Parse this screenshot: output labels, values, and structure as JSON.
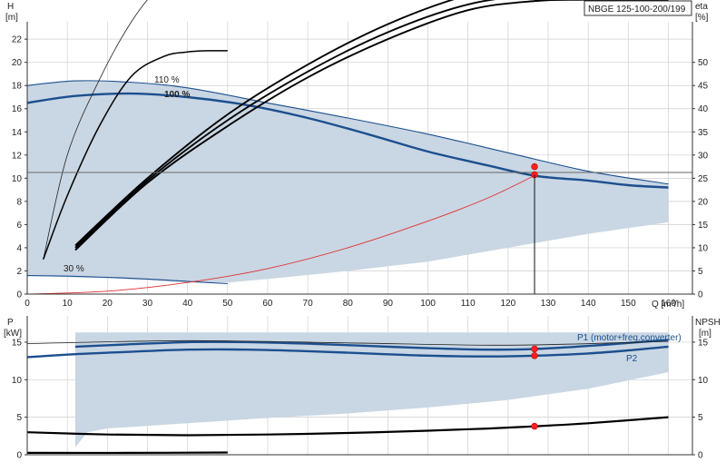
{
  "chart_data": [
    {
      "type": "line",
      "title": "NBGE 125-100-200/199",
      "xlabel": "Q [m³/h]",
      "ylabel": "H",
      "ylabel_unit": "[m]",
      "y2label": "eta",
      "y2label_unit": "[%]",
      "xlim": [
        0,
        166
      ],
      "ylim": [
        0,
        23.5
      ],
      "y2lim": [
        0,
        58.75
      ],
      "x_ticks": [
        0,
        10,
        20,
        30,
        40,
        50,
        60,
        70,
        80,
        90,
        100,
        110,
        120,
        130,
        140,
        150,
        160
      ],
      "y_ticks": [
        0,
        2,
        4,
        6,
        8,
        10,
        12,
        14,
        16,
        18,
        20,
        22
      ],
      "y2_ticks": [
        0,
        5,
        10,
        15,
        20,
        25,
        30,
        35,
        40,
        45,
        50
      ],
      "grid": true,
      "colors": {
        "envelope": "#c9d6e3",
        "curve": "#1b4f8f",
        "eff": "#000000",
        "system": "#e03030",
        "point": "#ff2020",
        "gridline": "#cfcfcf"
      },
      "annotations": [
        {
          "text": "110 %",
          "x": 37,
          "y": 18.6
        },
        {
          "text": "100 %",
          "x": 37,
          "y": 17.3
        },
        {
          "text": "30 %",
          "x": 10.5,
          "y": 2.2
        }
      ],
      "envelope": [
        [
          0,
          18
        ],
        [
          12,
          18.4
        ],
        [
          25,
          18.3
        ],
        [
          40,
          17.8
        ],
        [
          60,
          16.5
        ],
        [
          80,
          15.2
        ],
        [
          100,
          13.8
        ],
        [
          120,
          12.2
        ],
        [
          140,
          10.6
        ],
        [
          160,
          9.5
        ],
        [
          160,
          6.2
        ],
        [
          140,
          5.2
        ],
        [
          120,
          4.0
        ],
        [
          100,
          2.8
        ],
        [
          80,
          2.0
        ],
        [
          60,
          1.3
        ],
        [
          50,
          1.0
        ],
        [
          40,
          1.0
        ],
        [
          30,
          1.2
        ],
        [
          20,
          1.35
        ],
        [
          0,
          1.6
        ]
      ],
      "series": [
        {
          "name": "",
          "role": "head",
          "style": "envelope-edge",
          "x": [
            0,
            12,
            25,
            40,
            60,
            80,
            100,
            120,
            140,
            160
          ],
          "y": [
            18,
            18.4,
            18.3,
            17.8,
            16.5,
            15.2,
            13.8,
            12.2,
            10.6,
            9.5
          ]
        },
        {
          "name": "",
          "role": "head",
          "style": "main",
          "x": [
            0,
            12,
            26,
            40,
            55,
            70,
            85,
            100,
            115,
            127,
            140,
            150,
            160
          ],
          "y": [
            16.5,
            17.1,
            17.3,
            17.0,
            16.3,
            15.2,
            13.8,
            12.3,
            11.1,
            10.2,
            9.8,
            9.4,
            9.2
          ]
        },
        {
          "name": "",
          "role": "head",
          "style": "envelope-edge",
          "x": [
            0,
            10,
            20,
            30,
            40,
            50
          ],
          "y": [
            1.6,
            1.55,
            1.45,
            1.3,
            1.1,
            0.9
          ]
        },
        {
          "name": "",
          "role": "eta",
          "style": "thin",
          "x": [
            4,
            10,
            18,
            26,
            33,
            38,
            43,
            50
          ],
          "y": [
            3.0,
            12.0,
            18.5,
            23.5,
            26.5,
            27.3,
            27.5,
            27.5
          ]
        },
        {
          "name": "",
          "role": "eta",
          "style": "medium",
          "x": [
            4,
            10,
            18,
            26,
            34,
            40,
            45,
            50
          ],
          "y": [
            3.0,
            8.5,
            14.5,
            18.8,
            20.5,
            20.9,
            21.0,
            21.0
          ]
        },
        {
          "name": "",
          "role": "eta",
          "style": "bold",
          "x": [
            12,
            30,
            50,
            70,
            90,
            110,
            127,
            140,
            160
          ],
          "y": [
            4.2,
            10.0,
            15.5,
            19.8,
            23.3,
            25.8,
            26.8,
            27.0,
            27.5
          ]
        },
        {
          "name": "",
          "role": "eta",
          "style": "bold",
          "x": [
            12,
            30,
            50,
            70,
            90,
            110,
            127,
            140,
            160
          ],
          "y": [
            4.0,
            9.8,
            15.0,
            19.2,
            22.6,
            25.0,
            25.8,
            25.9,
            25.9
          ]
        },
        {
          "name": "",
          "role": "eta",
          "style": "bold",
          "x": [
            12,
            30,
            50,
            70,
            90,
            110,
            127,
            140,
            160
          ],
          "y": [
            3.8,
            9.6,
            14.5,
            18.7,
            22.0,
            24.5,
            25.3,
            25.4,
            25.4
          ]
        },
        {
          "name": "",
          "role": "system",
          "style": "red",
          "x": [
            0,
            20,
            40,
            60,
            80,
            100,
            115,
            127
          ],
          "y": [
            0,
            0.25,
            1.0,
            2.2,
            4.0,
            6.3,
            8.3,
            10.3
          ]
        },
        {
          "name": "",
          "role": "reference",
          "style": "gray-line",
          "x": [
            0,
            166
          ],
          "y": [
            10.5,
            10.5
          ]
        }
      ],
      "duty_point": {
        "q": 126.6,
        "head": 10.3
      },
      "duty_markers": [
        {
          "x": 126.6,
          "y": 10.3
        },
        {
          "x": 126.6,
          "y": 11.0
        }
      ]
    },
    {
      "type": "line",
      "title": "",
      "xlabel": "",
      "ylabel": "P",
      "ylabel_unit": "[kW]",
      "y2label": "NPSH",
      "y2label_unit": "[m]",
      "xlim": [
        0,
        166
      ],
      "ylim": [
        0,
        18.5
      ],
      "y2lim": [
        0,
        18.5
      ],
      "y_ticks": [
        0,
        5,
        10,
        15
      ],
      "y2_ticks": [
        0,
        5,
        10,
        15
      ],
      "grid": true,
      "annotations": [
        {
          "text": "P1 (motor+freq.converter)",
          "x": 146,
          "y": 17.2
        },
        {
          "text": "P2",
          "x": 160,
          "y": 14.0
        }
      ],
      "envelope": [
        [
          12,
          16.3
        ],
        [
          40,
          16.3
        ],
        [
          80,
          16.3
        ],
        [
          120,
          16.3
        ],
        [
          160,
          16.3
        ],
        [
          160,
          11.0
        ],
        [
          140,
          8.8
        ],
        [
          120,
          7.3
        ],
        [
          100,
          6.3
        ],
        [
          80,
          5.5
        ],
        [
          60,
          4.9
        ],
        [
          40,
          4.2
        ],
        [
          20,
          3.5
        ],
        [
          15,
          3.0
        ],
        [
          12,
          1.0
        ]
      ],
      "series": [
        {
          "name": "P1 (motor+freq.converter)",
          "role": "power",
          "style": "main",
          "x": [
            12,
            25,
            40,
            55,
            70,
            85,
            100,
            115,
            127,
            140,
            150,
            160
          ],
          "y": [
            14.4,
            14.7,
            15.0,
            15.0,
            14.8,
            14.5,
            14.2,
            14.0,
            14.1,
            14.5,
            14.9,
            15.3
          ]
        },
        {
          "name": "P2",
          "role": "power",
          "style": "main",
          "x": [
            0,
            12,
            25,
            40,
            55,
            70,
            85,
            100,
            115,
            127,
            140,
            150,
            160
          ],
          "y": [
            13.0,
            13.4,
            13.7,
            14.0,
            14.0,
            13.8,
            13.5,
            13.2,
            13.1,
            13.2,
            13.5,
            13.9,
            14.4
          ]
        },
        {
          "name": "",
          "role": "power",
          "style": "thin",
          "x": [
            0,
            40,
            80,
            120,
            160
          ],
          "y": [
            14.8,
            15.2,
            14.9,
            14.6,
            15.1
          ]
        },
        {
          "name": "",
          "role": "npsh",
          "style": "black",
          "x": [
            0,
            20,
            40,
            60,
            80,
            100,
            115,
            127,
            140,
            160
          ],
          "y": [
            3.0,
            2.7,
            2.6,
            2.7,
            2.9,
            3.2,
            3.5,
            3.8,
            4.2,
            5.0
          ]
        },
        {
          "name": "",
          "role": "npsh",
          "style": "black",
          "x": [
            0,
            25,
            50
          ],
          "y": [
            0.25,
            0.25,
            0.3
          ]
        }
      ],
      "duty_markers": [
        {
          "x": 126.6,
          "y": 14.1
        },
        {
          "x": 126.6,
          "y": 13.2
        },
        {
          "x": 126.6,
          "y": 3.8
        }
      ]
    }
  ]
}
